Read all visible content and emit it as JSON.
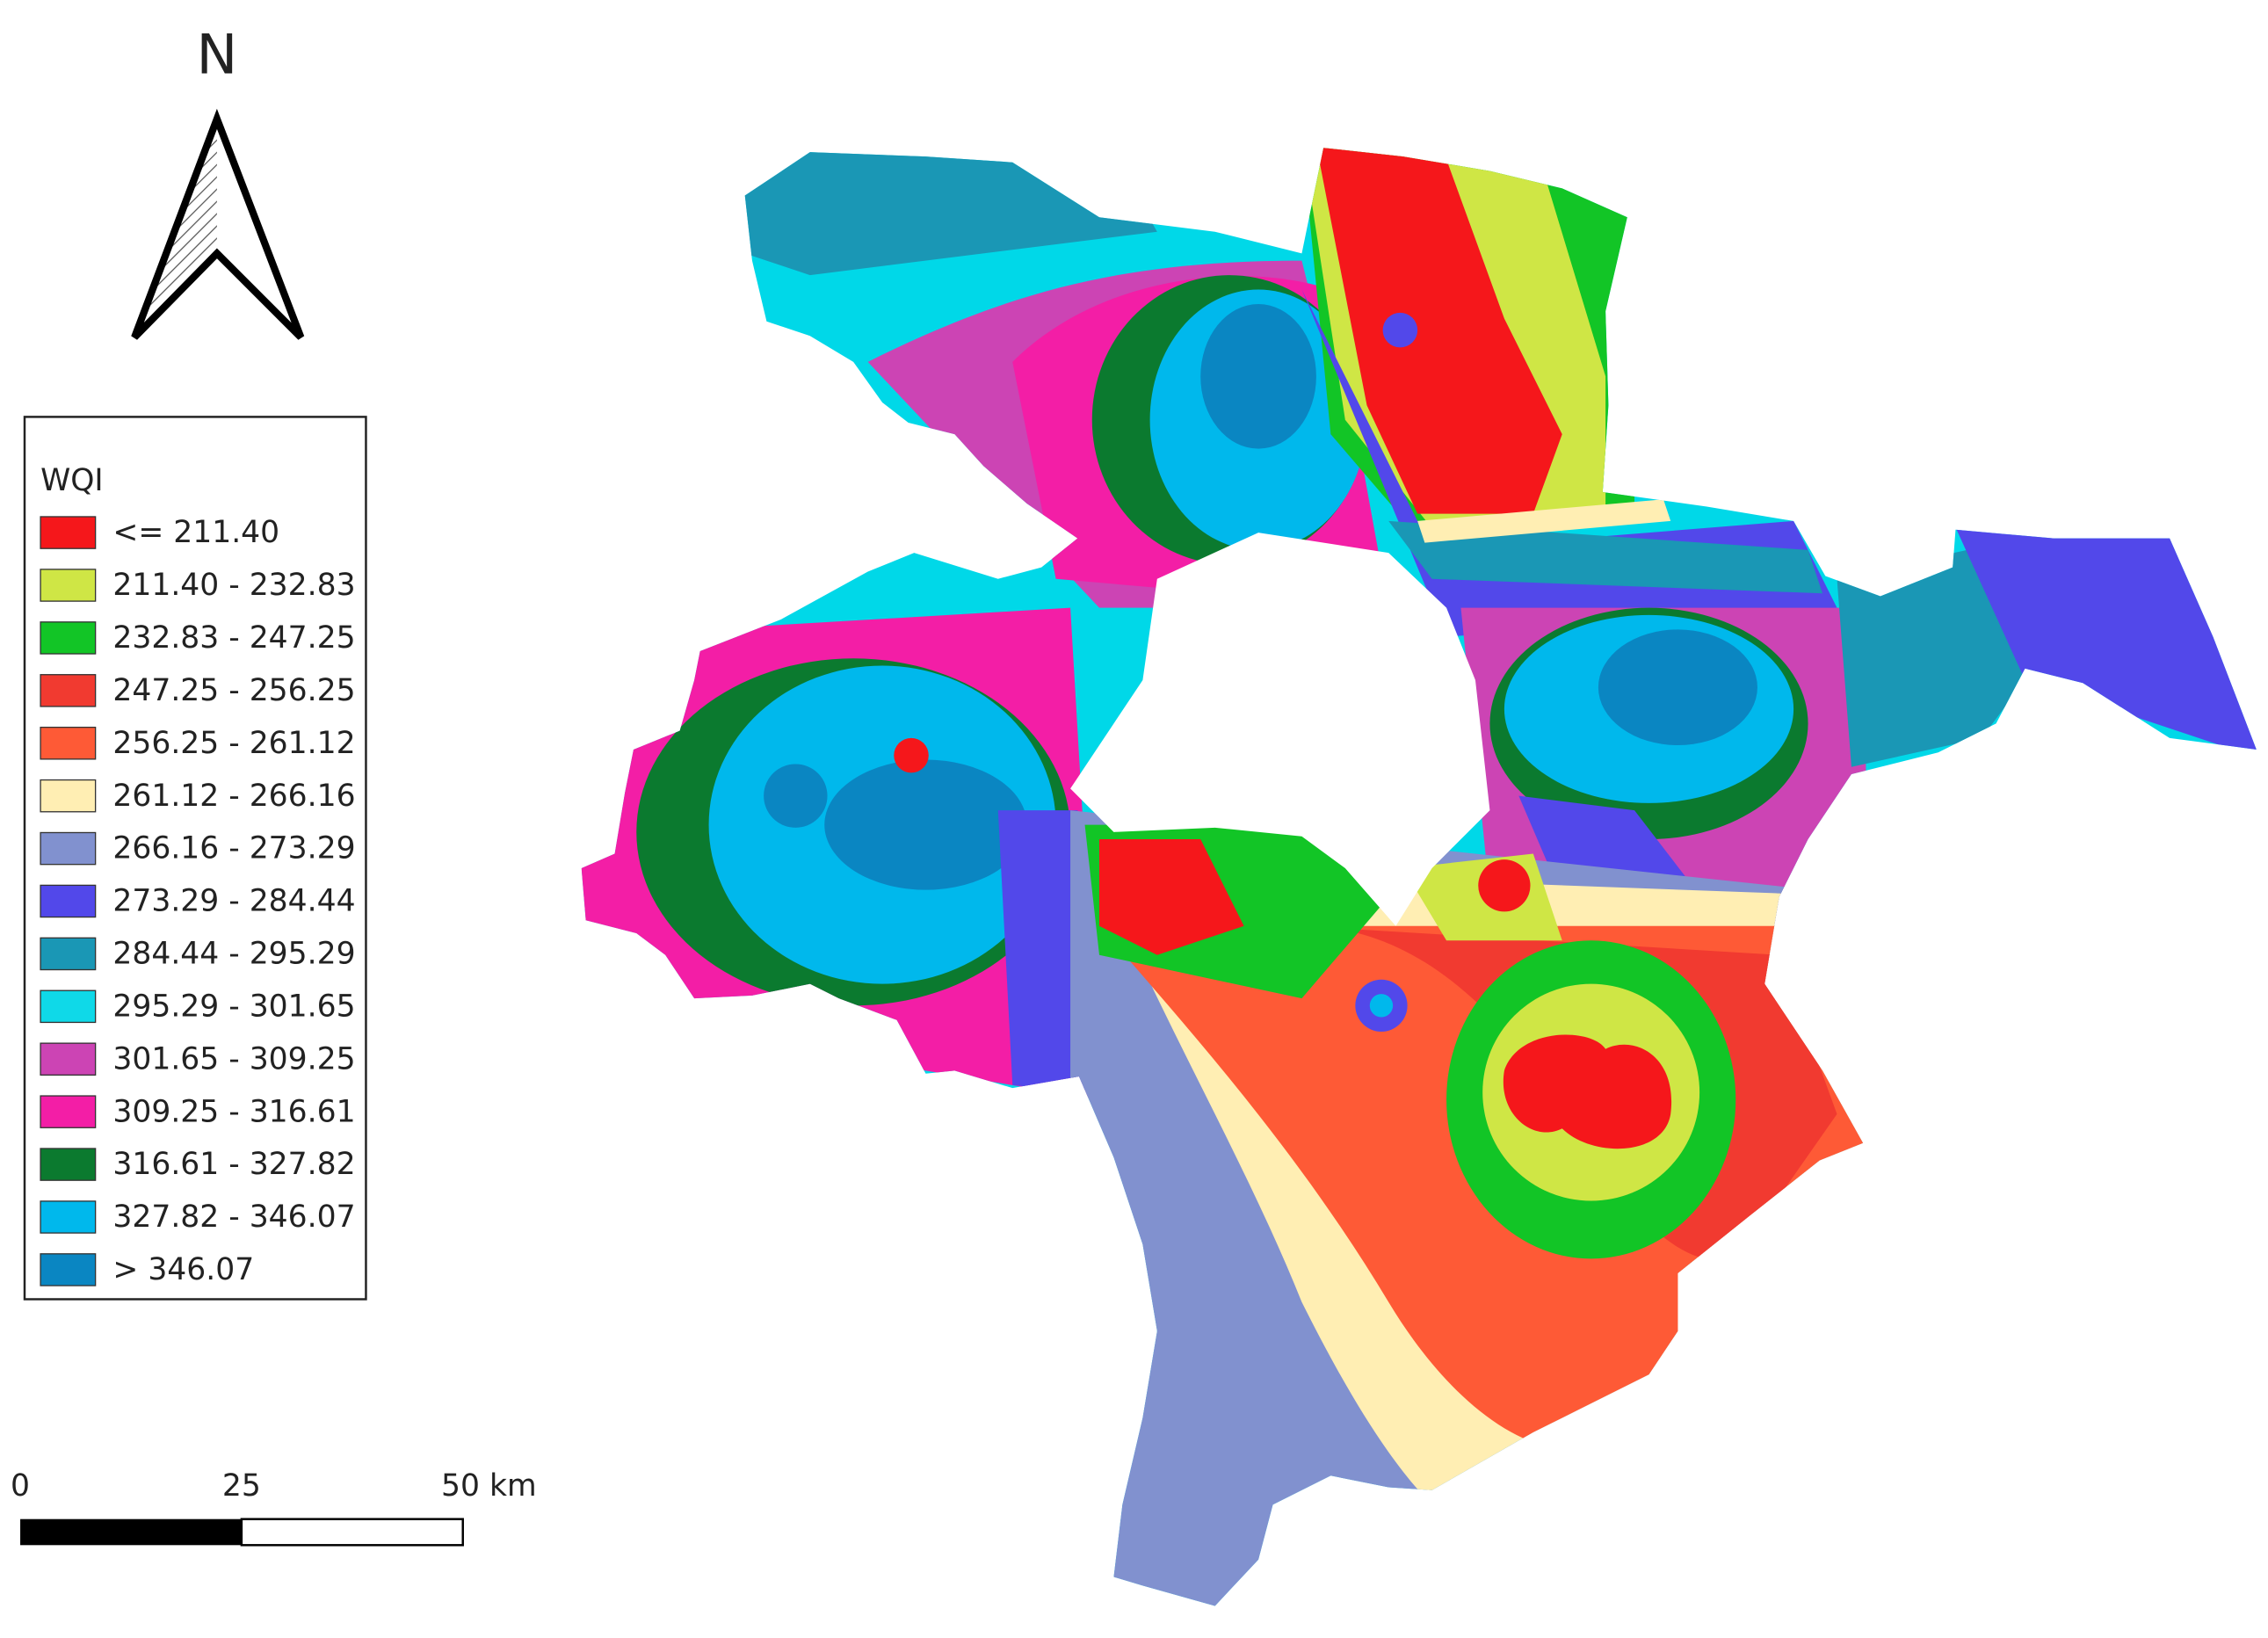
{
  "north_arrow": {
    "label": "N"
  },
  "legend": {
    "title": "WQI",
    "items": [
      {
        "label": "<= 211.40",
        "color": "#f5171b"
      },
      {
        "label": "211.40 - 232.83",
        "color": "#cfe645"
      },
      {
        "label": "232.83 - 247.25",
        "color": "#12c526"
      },
      {
        "label": "247.25 - 256.25",
        "color": "#f13a30"
      },
      {
        "label": "256.25 - 261.12",
        "color": "#fe5a36"
      },
      {
        "label": "261.12 - 266.16",
        "color": "#ffeeb3"
      },
      {
        "label": "266.16 - 273.29",
        "color": "#8191cf"
      },
      {
        "label": "273.29 - 284.44",
        "color": "#5248ea"
      },
      {
        "label": "284.44 - 295.29",
        "color": "#1a97b5"
      },
      {
        "label": "295.29 - 301.65",
        "color": "#0fd9e8"
      },
      {
        "label": "301.65 - 309.25",
        "color": "#cc44b4"
      },
      {
        "label": "309.25 - 316.61",
        "color": "#f31ea6"
      },
      {
        "label": "316.61 - 327.82",
        "color": "#0b7a2f"
      },
      {
        "label": "327.82 - 346.07",
        "color": "#00b8ec"
      },
      {
        "label": "> 346.07",
        "color": "#0a86c2"
      }
    ]
  },
  "scale_bar": {
    "labels": [
      "0",
      "25",
      "50 km"
    ]
  }
}
